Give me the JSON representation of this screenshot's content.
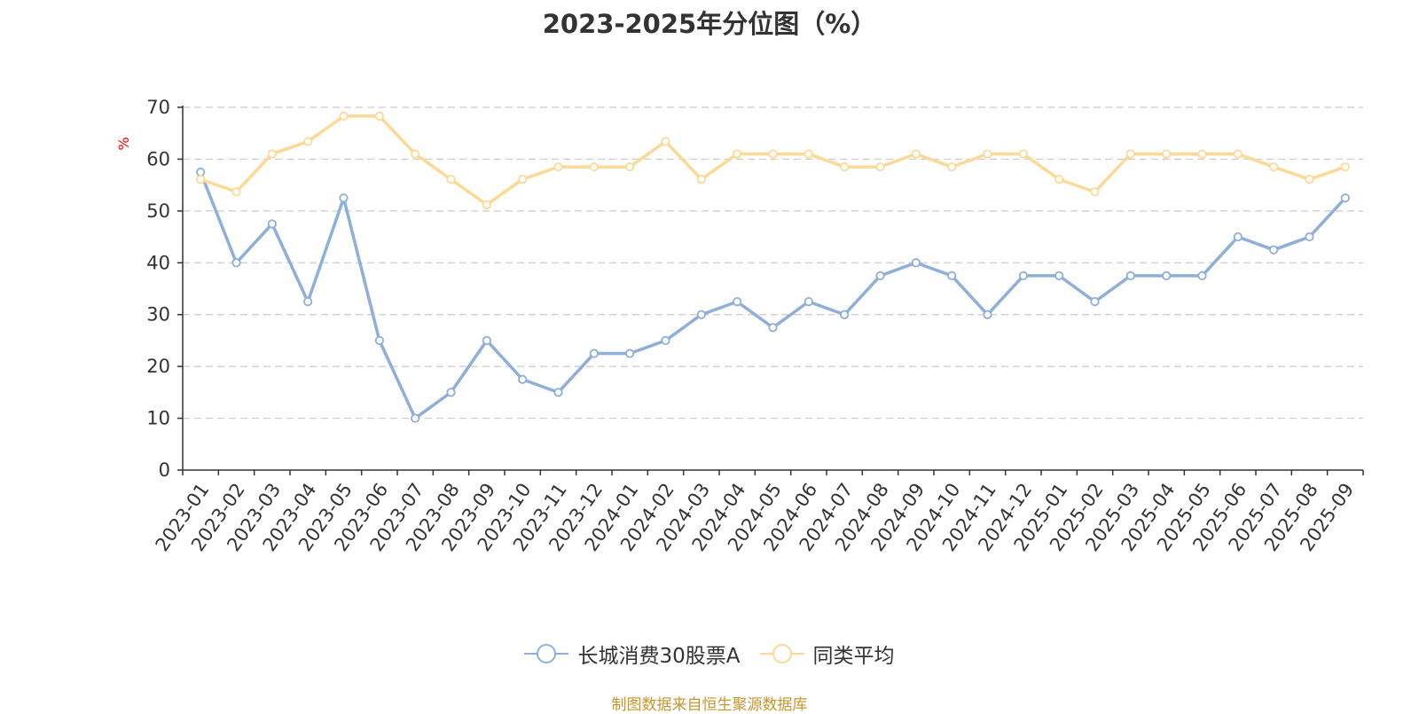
{
  "title": "2023-2025年分位图（%）",
  "source_note": "制图数据来自恒生聚源数据库",
  "colors": {
    "series_a": "#8eaedb",
    "series_b": "#fcd995",
    "ylabel": "#ff0000",
    "grid": "#cccccc",
    "axis": "#333333",
    "source": "#c8962d"
  },
  "chart_data": {
    "type": "line",
    "title": "2023-2025年分位图（%）",
    "xlabel": "",
    "ylabel": "%",
    "ylim": [
      0,
      70
    ],
    "yticks": [
      0,
      10,
      20,
      30,
      40,
      50,
      60,
      70
    ],
    "grid": true,
    "legend_position": "bottom-center",
    "x": [
      "2023-01",
      "2023-02",
      "2023-03",
      "2023-04",
      "2023-05",
      "2023-06",
      "2023-07",
      "2023-08",
      "2023-09",
      "2023-10",
      "2023-11",
      "2023-12",
      "2024-01",
      "2024-02",
      "2024-03",
      "2024-04",
      "2024-05",
      "2024-06",
      "2024-07",
      "2024-08",
      "2024-09",
      "2024-10",
      "2024-11",
      "2024-12",
      "2025-01",
      "2025-02",
      "2025-03",
      "2025-04",
      "2025-05",
      "2025-06",
      "2025-07",
      "2025-08",
      "2025-09"
    ],
    "series": [
      {
        "name": "长城消费30股票A",
        "values": [
          57.5,
          40,
          47.5,
          32.5,
          52.5,
          25,
          10,
          15,
          25,
          17.5,
          15,
          22.5,
          22.5,
          25,
          30,
          32.5,
          27.5,
          32.5,
          30,
          37.5,
          40,
          37.5,
          30,
          37.5,
          37.5,
          32.5,
          37.5,
          37.5,
          37.5,
          45,
          42.5,
          45,
          52.5
        ]
      },
      {
        "name": "同类平均",
        "values": [
          56.1,
          53.7,
          61,
          63.4,
          68.3,
          68.3,
          61,
          56.1,
          51.2,
          56.1,
          58.5,
          58.5,
          58.5,
          63.4,
          56.1,
          61,
          61,
          61,
          58.5,
          58.5,
          61,
          58.5,
          61,
          61,
          56.1,
          53.7,
          61,
          61,
          61,
          61,
          58.5,
          56.1,
          58.5
        ]
      }
    ]
  }
}
